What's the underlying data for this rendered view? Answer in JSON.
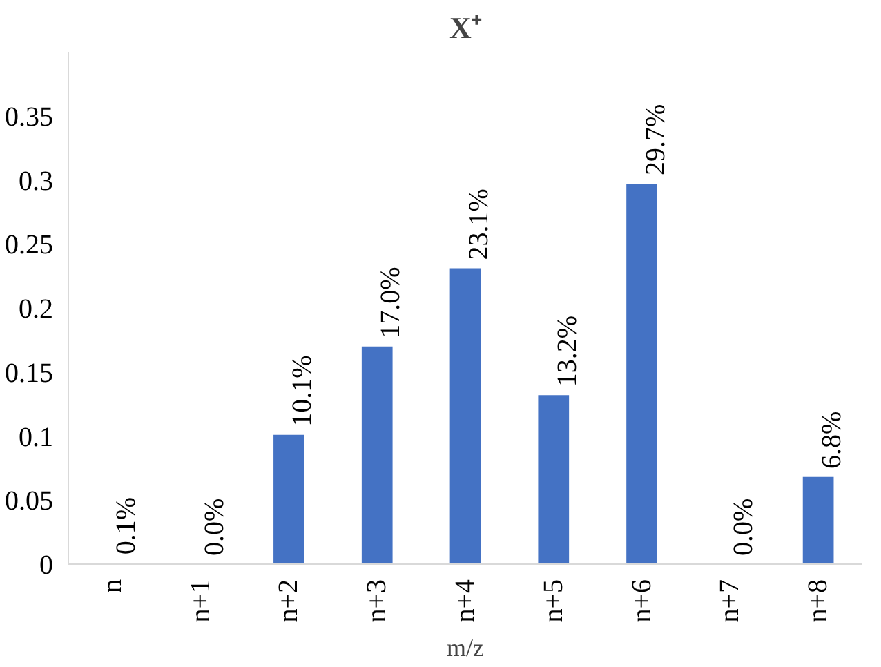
{
  "chart_data": {
    "type": "bar",
    "title": "X⁺",
    "xlabel": "m/z",
    "categories": [
      "n",
      "n+1",
      "n+2",
      "n+3",
      "n+4",
      "n+5",
      "n+6",
      "n+7",
      "n+8"
    ],
    "values": [
      0.001,
      0.0,
      0.101,
      0.17,
      0.231,
      0.132,
      0.297,
      0.0,
      0.068
    ],
    "value_labels": [
      "0.1%",
      "0.0%",
      "10.1%",
      "17.0%",
      "23.1%",
      "13.2%",
      "29.7%",
      "0.0%",
      "6.8%"
    ],
    "color": "#4472c4",
    "ylim": [
      0,
      0.4
    ],
    "yticks": [
      0,
      0.05,
      0.1,
      0.15,
      0.2,
      0.25,
      0.3,
      0.35
    ],
    "grid": false
  }
}
